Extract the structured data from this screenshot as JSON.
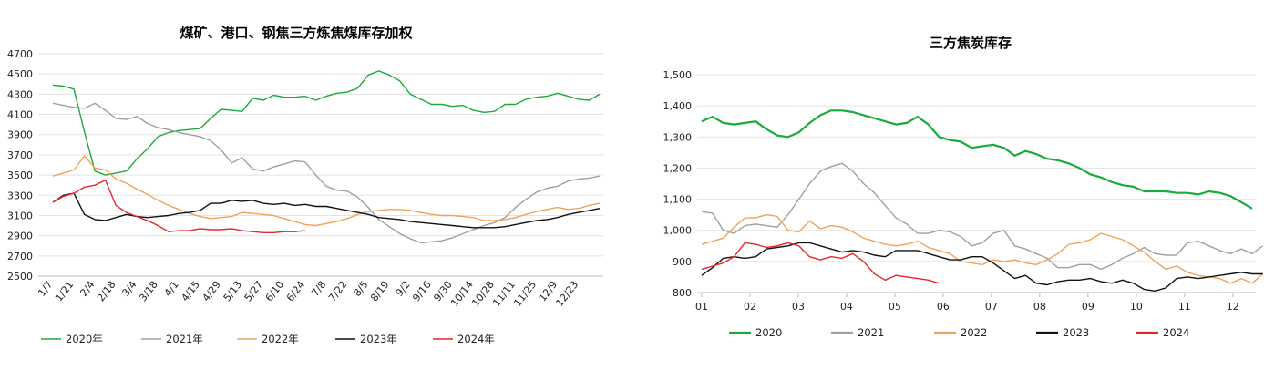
{
  "chart_data": [
    {
      "type": "line",
      "title": "煤矿、港口、钢焦三方炼焦煤库存加权",
      "xlabel": "",
      "ylabel": "",
      "ylim": [
        2500,
        4700
      ],
      "yticks": [
        "2500",
        "2700",
        "2900",
        "3100",
        "3300",
        "3500",
        "3700",
        "3900",
        "4100",
        "4300",
        "4500",
        "4700"
      ],
      "x_tick_labels": [
        "1/7",
        "1/21",
        "2/4",
        "2/18",
        "3/4",
        "3/18",
        "4/1",
        "4/15",
        "4/29",
        "5/13",
        "5/27",
        "6/10",
        "6/24",
        "7/8",
        "7/22",
        "8/5",
        "8/19",
        "9/2",
        "9/16",
        "9/30",
        "10/14",
        "10/28",
        "11/11",
        "11/25",
        "12/9",
        "12/23"
      ],
      "grid": "horizontal",
      "legend_position": "bottom",
      "series": [
        {
          "name": "2020年",
          "color": "#1aab3b",
          "values": [
            4390,
            4380,
            4350,
            3930,
            3540,
            3500,
            3520,
            3540,
            3660,
            3760,
            3880,
            3920,
            3940,
            3950,
            3960,
            4060,
            4150,
            4140,
            4130,
            4260,
            4240,
            4290,
            4270,
            4270,
            4280,
            4240,
            4280,
            4310,
            4320,
            4360,
            4490,
            4530,
            4490,
            4430,
            4300,
            4250,
            4200,
            4200,
            4180,
            4190,
            4140,
            4120,
            4130,
            4200,
            4200,
            4250,
            4270,
            4280,
            4310,
            4280,
            4250,
            4240,
            4300
          ]
        },
        {
          "name": "2021年",
          "color": "#a0a0a0",
          "values": [
            4210,
            4190,
            4170,
            4160,
            4210,
            4140,
            4060,
            4050,
            4080,
            4010,
            3970,
            3950,
            3920,
            3900,
            3880,
            3840,
            3750,
            3620,
            3670,
            3560,
            3540,
            3580,
            3610,
            3640,
            3630,
            3500,
            3390,
            3350,
            3340,
            3280,
            3180,
            3060,
            2990,
            2920,
            2870,
            2830,
            2840,
            2850,
            2880,
            2920,
            2960,
            3000,
            3030,
            3080,
            3180,
            3260,
            3330,
            3370,
            3390,
            3440,
            3460,
            3470,
            3490
          ]
        },
        {
          "name": "2022年",
          "color": "#f4a15a",
          "values": [
            3490,
            3520,
            3550,
            3690,
            3570,
            3550,
            3460,
            3420,
            3360,
            3310,
            3250,
            3200,
            3160,
            3120,
            3090,
            3070,
            3080,
            3090,
            3130,
            3120,
            3110,
            3100,
            3070,
            3040,
            3010,
            3000,
            3020,
            3040,
            3070,
            3110,
            3140,
            3150,
            3160,
            3160,
            3150,
            3130,
            3110,
            3100,
            3100,
            3090,
            3080,
            3050,
            3050,
            3060,
            3080,
            3110,
            3140,
            3160,
            3180,
            3160,
            3170,
            3200,
            3220
          ]
        },
        {
          "name": "2023年",
          "color": "#111111",
          "values": [
            3230,
            3300,
            3320,
            3110,
            3060,
            3050,
            3080,
            3110,
            3090,
            3080,
            3090,
            3100,
            3120,
            3130,
            3150,
            3220,
            3220,
            3250,
            3240,
            3250,
            3220,
            3210,
            3220,
            3200,
            3210,
            3190,
            3190,
            3170,
            3150,
            3130,
            3110,
            3080,
            3070,
            3060,
            3040,
            3030,
            3020,
            3010,
            3000,
            2990,
            2980,
            2980,
            2980,
            2990,
            3010,
            3030,
            3050,
            3060,
            3080,
            3110,
            3130,
            3150,
            3170
          ]
        },
        {
          "name": "2024年",
          "color": "#e8262a",
          "values": [
            3230,
            3290,
            3320,
            3380,
            3400,
            3450,
            3200,
            3130,
            3090,
            3050,
            3000,
            2940,
            2950,
            2950,
            2970,
            2960,
            2960,
            2970,
            2950,
            2940,
            2930,
            2930,
            2940,
            2940,
            2950
          ]
        }
      ]
    },
    {
      "type": "line",
      "title": "三方焦炭库存",
      "xlabel": "",
      "ylabel": "",
      "ylim": [
        800,
        1500
      ],
      "yticks": [
        "800",
        "900",
        "1,000",
        "1,100",
        "1,200",
        "1,300",
        "1,400",
        "1,500"
      ],
      "x_tick_labels": [
        "01",
        "02",
        "03",
        "04",
        "05",
        "06",
        "07",
        "08",
        "09",
        "10",
        "11",
        "12"
      ],
      "grid": "horizontal",
      "legend_position": "bottom",
      "series": [
        {
          "name": "2020",
          "color": "#1aab3b",
          "values": [
            1350,
            1365,
            1345,
            1340,
            1345,
            1350,
            1325,
            1305,
            1300,
            1315,
            1345,
            1370,
            1385,
            1385,
            1380,
            1370,
            1360,
            1350,
            1340,
            1345,
            1365,
            1340,
            1300,
            1290,
            1285,
            1265,
            1270,
            1275,
            1265,
            1240,
            1255,
            1245,
            1230,
            1225,
            1215,
            1200,
            1180,
            1170,
            1155,
            1145,
            1140,
            1125,
            1125,
            1125,
            1120,
            1120,
            1115,
            1125,
            1120,
            1110,
            1090,
            1070
          ]
        },
        {
          "name": "2021",
          "color": "#a0a0a0",
          "values": [
            1060,
            1055,
            1000,
            990,
            1015,
            1020,
            1015,
            1010,
            1050,
            1100,
            1150,
            1190,
            1205,
            1215,
            1190,
            1150,
            1120,
            1080,
            1040,
            1020,
            990,
            990,
            1000,
            995,
            980,
            950,
            960,
            990,
            1000,
            950,
            940,
            925,
            910,
            880,
            880,
            890,
            890,
            875,
            890,
            910,
            925,
            945,
            925,
            920,
            920,
            960,
            965,
            950,
            935,
            925,
            940,
            925,
            950
          ]
        },
        {
          "name": "2022",
          "color": "#f4a15a",
          "values": [
            955,
            965,
            975,
            1010,
            1040,
            1040,
            1050,
            1045,
            1000,
            995,
            1030,
            1005,
            1015,
            1010,
            995,
            975,
            965,
            955,
            950,
            955,
            965,
            945,
            935,
            925,
            900,
            895,
            890,
            905,
            900,
            905,
            895,
            890,
            905,
            925,
            955,
            960,
            970,
            990,
            980,
            970,
            950,
            930,
            900,
            875,
            885,
            865,
            855,
            850,
            845,
            830,
            845,
            830,
            860
          ]
        },
        {
          "name": "2023",
          "color": "#111111",
          "values": [
            855,
            880,
            910,
            915,
            910,
            915,
            940,
            945,
            950,
            960,
            960,
            950,
            940,
            930,
            935,
            930,
            920,
            915,
            935,
            935,
            935,
            925,
            915,
            905,
            905,
            915,
            915,
            895,
            870,
            845,
            855,
            830,
            825,
            835,
            840,
            840,
            845,
            835,
            830,
            840,
            830,
            810,
            805,
            815,
            845,
            850,
            845,
            850,
            855,
            860,
            865,
            860,
            860
          ]
        },
        {
          "name": "2024",
          "color": "#e8262a",
          "values": [
            875,
            885,
            895,
            915,
            960,
            955,
            945,
            950,
            960,
            950,
            915,
            905,
            915,
            910,
            925,
            900,
            860,
            840,
            855,
            850,
            845,
            840,
            830
          ]
        }
      ]
    }
  ]
}
